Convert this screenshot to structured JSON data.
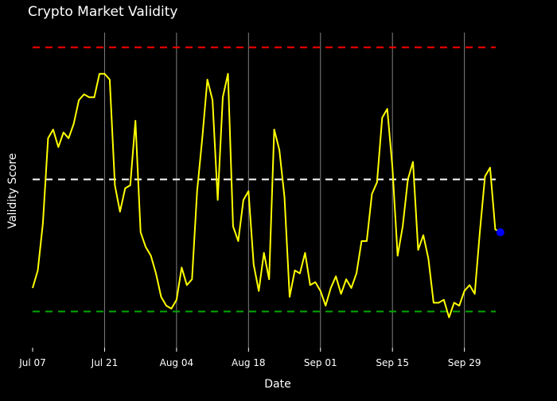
{
  "chart_data": {
    "type": "line",
    "title": "Crypto Market Validity",
    "xlabel": "Date",
    "ylabel": "Validity Score",
    "x_start": "2024-07-07",
    "x_ticks": [
      "Jul 07",
      "Jul 21",
      "Aug 04",
      "Aug 18",
      "Sep 01",
      "Sep 15",
      "Sep 29"
    ],
    "ylim": [
      0,
      1
    ],
    "grid": "vertical",
    "reference_lines": [
      {
        "value": 0.95,
        "color": "#ff0000",
        "style": "dashed"
      },
      {
        "value": 0.5,
        "color": "#ffffff",
        "style": "dashed"
      },
      {
        "value": 0.05,
        "color": "#00aa00",
        "style": "dashed"
      }
    ],
    "series": [
      {
        "color": "#ffff00",
        "values": [
          0.13,
          0.19,
          0.35,
          0.64,
          0.67,
          0.61,
          0.66,
          0.64,
          0.69,
          0.77,
          0.79,
          0.78,
          0.78,
          0.86,
          0.86,
          0.84,
          0.48,
          0.39,
          0.47,
          0.48,
          0.7,
          0.32,
          0.27,
          0.24,
          0.18,
          0.1,
          0.07,
          0.06,
          0.09,
          0.2,
          0.14,
          0.16,
          0.46,
          0.64,
          0.84,
          0.77,
          0.43,
          0.78,
          0.86,
          0.34,
          0.29,
          0.43,
          0.46,
          0.21,
          0.12,
          0.25,
          0.16,
          0.67,
          0.6,
          0.44,
          0.1,
          0.19,
          0.18,
          0.25,
          0.14,
          0.15,
          0.12,
          0.07,
          0.13,
          0.17,
          0.11,
          0.16,
          0.13,
          0.18,
          0.29,
          0.29,
          0.45,
          0.49,
          0.71,
          0.74,
          0.54,
          0.24,
          0.34,
          0.5,
          0.56,
          0.26,
          0.31,
          0.23,
          0.08,
          0.08,
          0.09,
          0.03,
          0.08,
          0.07,
          0.12,
          0.14,
          0.11,
          0.32,
          0.51,
          0.54,
          0.33,
          0.32
        ]
      }
    ]
  }
}
